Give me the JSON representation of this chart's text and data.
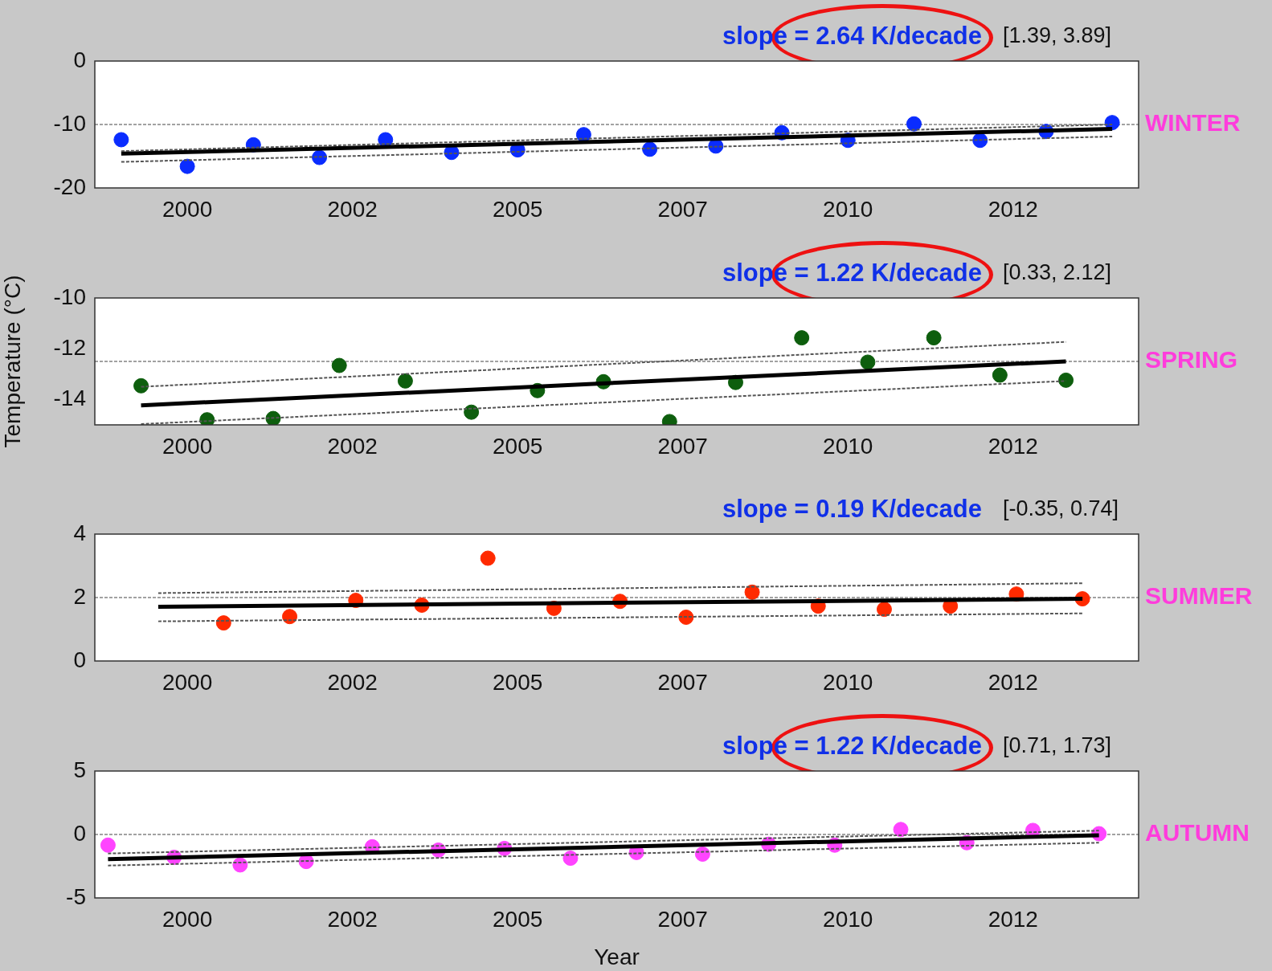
{
  "chart_data": [
    {
      "type": "scatter",
      "title": "WINTER",
      "annotations": [
        "slope = 2.64 K/decade",
        "[1.39, 3.89]"
      ],
      "xlim": [
        1998.6,
        2014.4
      ],
      "xticks": [
        {
          "value": 2000,
          "label": "2000"
        },
        {
          "value": 2002.5,
          "label": "2002"
        },
        {
          "value": 2005,
          "label": "2005"
        },
        {
          "value": 2007.5,
          "label": "2007"
        },
        {
          "value": 2010,
          "label": "2010"
        },
        {
          "value": 2012.5,
          "label": "2012"
        }
      ],
      "ylim": [
        -20,
        0
      ],
      "yticks": [
        -20,
        -10,
        0
      ],
      "marker": "circle",
      "ref_lines": [
        {
          "axis": "y",
          "value": -10,
          "line_style": "dashed"
        }
      ],
      "series": [
        {
          "type": "scatter",
          "color": "#0a2cff",
          "x": [
            1999,
            2000,
            2001,
            2002,
            2003,
            2004,
            2005,
            2006,
            2007,
            2008,
            2009,
            2010,
            2011,
            2012,
            2013,
            2014
          ],
          "values": [
            -12.4,
            -16.6,
            -13.2,
            -15.2,
            -12.4,
            -14.4,
            -14.0,
            -11.6,
            -13.9,
            -13.4,
            -11.3,
            -12.5,
            -9.9,
            -12.5,
            -11.1,
            -9.7
          ]
        },
        {
          "type": "line",
          "color": "#000000",
          "marker": "none",
          "x": [
            1999,
            2014
          ],
          "values": [
            -14.6,
            -10.7
          ]
        },
        {
          "type": "line",
          "color": "#555555",
          "marker": "none",
          "line_style": "dashed",
          "x": [
            1999,
            2014
          ],
          "values": [
            -14.2,
            -10.0
          ]
        },
        {
          "type": "line",
          "color": "#555555",
          "marker": "none",
          "line_style": "dashed",
          "x": [
            1999,
            2014
          ],
          "values": [
            -15.9,
            -11.9
          ]
        }
      ]
    },
    {
      "type": "scatter",
      "title": "SPRING",
      "ylabel": "Temperature (°C)",
      "annotations": [
        "slope = 1.22 K/decade",
        "[0.33, 2.12]"
      ],
      "xlim": [
        1998.6,
        2014.4
      ],
      "xticks": [
        {
          "value": 2000,
          "label": "2000"
        },
        {
          "value": 2002.5,
          "label": "2002"
        },
        {
          "value": 2005,
          "label": "2005"
        },
        {
          "value": 2007.5,
          "label": "2007"
        },
        {
          "value": 2010,
          "label": "2010"
        },
        {
          "value": 2012.5,
          "label": "2012"
        }
      ],
      "ylim": [
        -15,
        -10
      ],
      "yticks": [
        -14,
        -12,
        -10
      ],
      "marker": "circle",
      "ref_lines": [
        {
          "axis": "y",
          "value": -12.5,
          "line_style": "dashed"
        }
      ],
      "series": [
        {
          "type": "scatter",
          "color": "#0d5e0d",
          "x": [
            1999.3,
            2000.3,
            2001.3,
            2002.3,
            2003.3,
            2004.3,
            2005.3,
            2006.3,
            2007.3,
            2008.3,
            2009.3,
            2010.3,
            2011.3,
            2012.3,
            2013.3
          ],
          "values": [
            -13.46,
            -14.8,
            -14.75,
            -12.66,
            -13.27,
            -14.5,
            -13.65,
            -13.3,
            -14.87,
            -13.33,
            -11.57,
            -12.53,
            -11.57,
            -13.04,
            -13.24
          ]
        },
        {
          "type": "line",
          "color": "#000000",
          "marker": "none",
          "x": [
            1999.3,
            2013.3
          ],
          "values": [
            -14.23,
            -12.5
          ]
        },
        {
          "type": "line",
          "color": "#555555",
          "marker": "none",
          "line_style": "dashed",
          "x": [
            1999.3,
            2013.3
          ],
          "values": [
            -13.5,
            -11.73
          ]
        },
        {
          "type": "line",
          "color": "#555555",
          "marker": "none",
          "line_style": "dashed",
          "x": [
            1999.3,
            2013.3
          ],
          "values": [
            -14.97,
            -13.27
          ]
        }
      ]
    },
    {
      "type": "scatter",
      "title": "SUMMER",
      "annotations": [
        "slope = 0.19 K/decade",
        "[-0.35, 0.74]"
      ],
      "xlim": [
        1998.6,
        2014.4
      ],
      "xticks": [
        {
          "value": 2000,
          "label": "2000"
        },
        {
          "value": 2002.5,
          "label": "2002"
        },
        {
          "value": 2005,
          "label": "2005"
        },
        {
          "value": 2007.5,
          "label": "2007"
        },
        {
          "value": 2010,
          "label": "2010"
        },
        {
          "value": 2012.5,
          "label": "2012"
        }
      ],
      "ylim": [
        0,
        4
      ],
      "yticks": [
        0,
        2,
        4
      ],
      "marker": "circle",
      "ref_lines": [
        {
          "axis": "y",
          "value": 2,
          "line_style": "dashed"
        }
      ],
      "series": [
        {
          "type": "scatter",
          "color": "#ff2a00",
          "x": [
            2000.55,
            2001.55,
            2002.55,
            2003.55,
            2004.55,
            2005.55,
            2006.55,
            2007.55,
            2008.55,
            2009.55,
            2010.55,
            2011.55,
            2012.55,
            2013.55
          ],
          "values": [
            1.2,
            1.4,
            1.91,
            1.76,
            3.24,
            1.66,
            1.88,
            1.38,
            2.17,
            1.73,
            1.63,
            1.73,
            2.11,
            1.96
          ]
        },
        {
          "type": "line",
          "color": "#000000",
          "marker": "none",
          "x": [
            1999.56,
            2013.55
          ],
          "values": [
            1.71,
            1.96
          ]
        },
        {
          "type": "line",
          "color": "#555555",
          "marker": "none",
          "line_style": "dashed",
          "x": [
            1999.56,
            2013.55
          ],
          "values": [
            2.14,
            2.45
          ]
        },
        {
          "type": "line",
          "color": "#555555",
          "marker": "none",
          "line_style": "dashed",
          "x": [
            1999.56,
            2013.55
          ],
          "values": [
            1.25,
            1.5
          ]
        }
      ]
    },
    {
      "type": "scatter",
      "title": "AUTUMN",
      "xlabel": "Year",
      "annotations": [
        "slope = 1.22 K/decade",
        "[0.71, 1.73]"
      ],
      "xlim": [
        1998.6,
        2014.4
      ],
      "xticks": [
        {
          "value": 2000,
          "label": "2000"
        },
        {
          "value": 2002.5,
          "label": "2002"
        },
        {
          "value": 2005,
          "label": "2005"
        },
        {
          "value": 2007.5,
          "label": "2007"
        },
        {
          "value": 2010,
          "label": "2010"
        },
        {
          "value": 2012.5,
          "label": "2012"
        }
      ],
      "ylim": [
        -5,
        5
      ],
      "yticks": [
        -5,
        0,
        5
      ],
      "marker": "circle",
      "ref_lines": [
        {
          "axis": "y",
          "value": 0,
          "line_style": "dashed"
        }
      ],
      "series": [
        {
          "type": "scatter",
          "color": "#ff44ff",
          "x": [
            1998.8,
            1999.8,
            2000.8,
            2001.8,
            2002.8,
            2003.8,
            2004.8,
            2005.8,
            2006.8,
            2007.8,
            2008.8,
            2009.8,
            2010.8,
            2011.8,
            2012.8,
            2013.8
          ],
          "values": [
            -0.84,
            -1.8,
            -2.4,
            -2.13,
            -0.97,
            -1.23,
            -1.1,
            -1.87,
            -1.42,
            -1.55,
            -0.77,
            -0.84,
            0.39,
            -0.65,
            0.32,
            0.06
          ]
        },
        {
          "type": "line",
          "color": "#000000",
          "marker": "none",
          "x": [
            1998.8,
            2013.8
          ],
          "values": [
            -1.94,
            -0.06
          ]
        },
        {
          "type": "line",
          "color": "#555555",
          "marker": "none",
          "line_style": "dashed",
          "x": [
            1998.8,
            2013.8
          ],
          "values": [
            -1.5,
            0.3
          ]
        },
        {
          "type": "line",
          "color": "#555555",
          "marker": "none",
          "line_style": "dashed",
          "x": [
            1998.8,
            2013.8
          ],
          "values": [
            -2.45,
            -0.65
          ]
        }
      ]
    }
  ]
}
